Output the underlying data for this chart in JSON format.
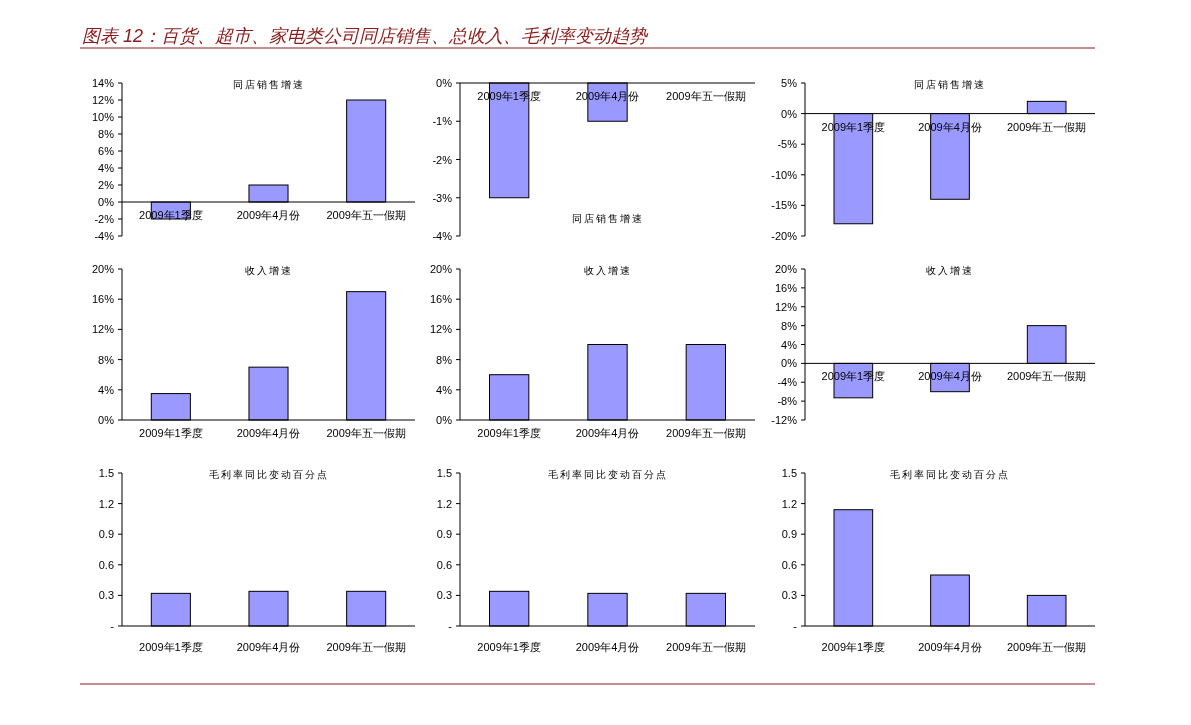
{
  "chart_data": [
    {
      "type": "other",
      "title": "图表 12：百货、超市、家电类公司同店销售、总收入、毛利率变动趋势"
    },
    {
      "type": "bar",
      "title": "同店销售增速",
      "categories": [
        "2009年1季度",
        "2009年4月份",
        "2009年五一假期"
      ],
      "values": [
        -2,
        2,
        12
      ],
      "color": "#9999ff",
      "ylim": [
        -4,
        14
      ],
      "yticks": [
        {
          "value": -4,
          "label": "-4%"
        },
        {
          "value": -2,
          "label": "-2%"
        },
        {
          "value": 0,
          "label": "0%"
        },
        {
          "value": 2,
          "label": "2%"
        },
        {
          "value": 4,
          "label": "4%"
        },
        {
          "value": 6,
          "label": "6%"
        },
        {
          "value": 8,
          "label": "8%"
        },
        {
          "value": 10,
          "label": "10%"
        },
        {
          "value": 12,
          "label": "12%"
        },
        {
          "value": 14,
          "label": "14%"
        }
      ]
    },
    {
      "type": "bar",
      "title": "同店销售增速",
      "categories": [
        "2009年1季度",
        "2009年4月份",
        "2009年五一假期"
      ],
      "values": [
        -3,
        -1,
        0
      ],
      "color": "#9999ff",
      "ylim": [
        -4,
        0
      ],
      "yticks": [
        {
          "value": -4,
          "label": "-4%"
        },
        {
          "value": -3,
          "label": "-3%"
        },
        {
          "value": -2,
          "label": "-2%"
        },
        {
          "value": -1,
          "label": "-1%"
        },
        {
          "value": 0,
          "label": "0%"
        }
      ]
    },
    {
      "type": "bar",
      "title": "同店销售增速",
      "categories": [
        "2009年1季度",
        "2009年4月份",
        "2009年五一假期"
      ],
      "values": [
        -18,
        -14,
        2
      ],
      "color": "#9999ff",
      "ylim": [
        -20,
        5
      ],
      "yticks": [
        {
          "value": -20,
          "label": "-20%"
        },
        {
          "value": -15,
          "label": "-15%"
        },
        {
          "value": -10,
          "label": "-10%"
        },
        {
          "value": -5,
          "label": "-5%"
        },
        {
          "value": 0,
          "label": "0%"
        },
        {
          "value": 5,
          "label": "5%"
        }
      ]
    },
    {
      "type": "bar",
      "title": "收入增速",
      "categories": [
        "2009年1季度",
        "2009年4月份",
        "2009年五一假期"
      ],
      "values": [
        3.5,
        7,
        17
      ],
      "color": "#9999ff",
      "ylim": [
        0,
        20
      ],
      "yticks": [
        {
          "value": 0,
          "label": "0%"
        },
        {
          "value": 4,
          "label": "4%"
        },
        {
          "value": 8,
          "label": "8%"
        },
        {
          "value": 12,
          "label": "12%"
        },
        {
          "value": 16,
          "label": "16%"
        },
        {
          "value": 20,
          "label": "20%"
        }
      ]
    },
    {
      "type": "bar",
      "title": "收入增速",
      "categories": [
        "2009年1季度",
        "2009年4月份",
        "2009年五一假期"
      ],
      "values": [
        6,
        10,
        10
      ],
      "color": "#9999ff",
      "ylim": [
        0,
        20
      ],
      "yticks": [
        {
          "value": 0,
          "label": "0%"
        },
        {
          "value": 4,
          "label": "4%"
        },
        {
          "value": 8,
          "label": "8%"
        },
        {
          "value": 12,
          "label": "12%"
        },
        {
          "value": 16,
          "label": "16%"
        },
        {
          "value": 20,
          "label": "20%"
        }
      ]
    },
    {
      "type": "bar",
      "title": "收入增速",
      "categories": [
        "2009年1季度",
        "2009年4月份",
        "2009年五一假期"
      ],
      "values": [
        -7.3,
        -6,
        8
      ],
      "color": "#9999ff",
      "ylim": [
        -12,
        20
      ],
      "yticks": [
        {
          "value": -12,
          "label": "-12%"
        },
        {
          "value": -8,
          "label": "-8%"
        },
        {
          "value": -4,
          "label": "-4%"
        },
        {
          "value": 0,
          "label": "0%"
        },
        {
          "value": 4,
          "label": "4%"
        },
        {
          "value": 8,
          "label": "8%"
        },
        {
          "value": 12,
          "label": "12%"
        },
        {
          "value": 16,
          "label": "16%"
        },
        {
          "value": 20,
          "label": "20%"
        }
      ]
    },
    {
      "type": "bar",
      "title": "毛利率同比变动百分点",
      "categories": [
        "2009年1季度",
        "2009年4月份",
        "2009年五一假期"
      ],
      "values": [
        0.32,
        0.34,
        0.34
      ],
      "color": "#9999ff",
      "ylim": [
        0,
        1.5
      ],
      "yticks": [
        {
          "value": 0,
          "label": "-"
        },
        {
          "value": 0.3,
          "label": "0.3"
        },
        {
          "value": 0.6,
          "label": "0.6"
        },
        {
          "value": 0.9,
          "label": "0.9"
        },
        {
          "value": 1.2,
          "label": "1.2"
        },
        {
          "value": 1.5,
          "label": "1.5"
        }
      ]
    },
    {
      "type": "bar",
      "title": "毛利率同比变动百分点",
      "categories": [
        "2009年1季度",
        "2009年4月份",
        "2009年五一假期"
      ],
      "values": [
        0.34,
        0.32,
        0.32
      ],
      "color": "#9999ff",
      "ylim": [
        0,
        1.5
      ],
      "yticks": [
        {
          "value": 0,
          "label": "-"
        },
        {
          "value": 0.3,
          "label": "0.3"
        },
        {
          "value": 0.6,
          "label": "0.6"
        },
        {
          "value": 0.9,
          "label": "0.9"
        },
        {
          "value": 1.2,
          "label": "1.2"
        },
        {
          "value": 1.5,
          "label": "1.5"
        }
      ]
    },
    {
      "type": "bar",
      "title": "毛利率同比变动百分点",
      "categories": [
        "2009年1季度",
        "2009年4月份",
        "2009年五一假期"
      ],
      "values": [
        1.14,
        0.5,
        0.3
      ],
      "color": "#9999ff",
      "ylim": [
        0,
        1.5
      ],
      "yticks": [
        {
          "value": 0,
          "label": "-"
        },
        {
          "value": 0.3,
          "label": "0.3"
        },
        {
          "value": 0.6,
          "label": "0.6"
        },
        {
          "value": 0.9,
          "label": "0.9"
        },
        {
          "value": 1.2,
          "label": "1.2"
        },
        {
          "value": 1.5,
          "label": "1.5"
        }
      ]
    }
  ]
}
